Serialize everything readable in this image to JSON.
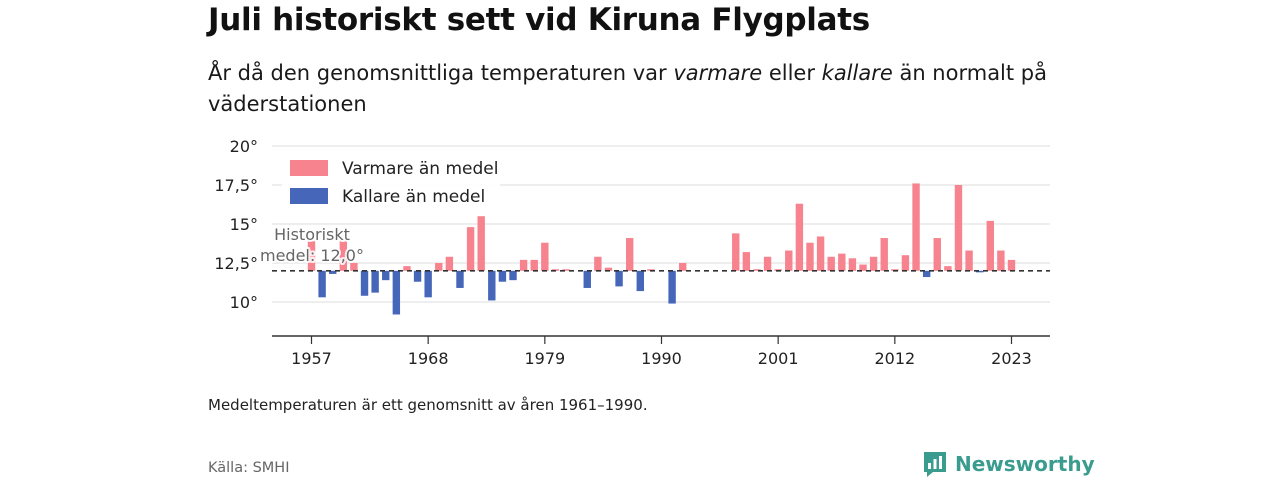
{
  "header": {
    "title": "Juli historiskt sett vid Kiruna Flygplats",
    "subtitle_pre": "År då den genomsnittliga temperaturen var ",
    "subtitle_warm": "varmare",
    "subtitle_mid": " eller ",
    "subtitle_cold": "kallare",
    "subtitle_post": " än normalt på väderstationen"
  },
  "footer": {
    "note": "Medeltemperaturen är ett genomsnitt av åren 1961–1990.",
    "source": "Källa: SMHI",
    "brand": "Newsworthy"
  },
  "colors": {
    "warm": "#f7838f",
    "cold": "#4566b9",
    "axis": "#333333",
    "grid": "#dddddd",
    "mean_line": "#333333"
  },
  "chart_data": {
    "type": "bar",
    "title": "Juli historiskt sett vid Kiruna Flygplats",
    "baseline": 12.0,
    "baseline_label_line1": "Historiskt",
    "baseline_label_line2": "medel: 12,0°",
    "ylim": [
      8,
      20
    ],
    "yticks": [
      10,
      12.5,
      15,
      17.5,
      20
    ],
    "ytick_labels": [
      "10°",
      "12,5°",
      "15°",
      "17,5°",
      "20°"
    ],
    "xlim": [
      1953,
      2027
    ],
    "xticks": [
      1957,
      1968,
      1979,
      1990,
      2001,
      2012,
      2023
    ],
    "xtick_labels": [
      "1957",
      "1968",
      "1979",
      "1990",
      "2001",
      "2012",
      "2023"
    ],
    "legend": [
      {
        "name": "Varmare än medel",
        "key": "warm"
      },
      {
        "name": "Kallare än medel",
        "key": "cold"
      }
    ],
    "legend_position": "top-left",
    "years": [
      1957,
      1958,
      1959,
      1960,
      1961,
      1962,
      1963,
      1964,
      1965,
      1966,
      1967,
      1968,
      1969,
      1970,
      1971,
      1972,
      1973,
      1974,
      1975,
      1976,
      1977,
      1978,
      1979,
      1980,
      1981,
      1982,
      1983,
      1984,
      1985,
      1986,
      1987,
      1988,
      1989,
      1990,
      1991,
      1992,
      1993,
      1994,
      1995,
      1996,
      1997,
      1998,
      1999,
      2000,
      2001,
      2002,
      2003,
      2004,
      2005,
      2006,
      2007,
      2008,
      2009,
      2010,
      2011,
      2012,
      2013,
      2014,
      2015,
      2016,
      2017,
      2018,
      2019,
      2020,
      2021,
      2022,
      2023,
      2024
    ],
    "values": [
      13.9,
      10.3,
      11.8,
      13.9,
      12.5,
      10.4,
      10.6,
      11.4,
      9.2,
      12.3,
      11.3,
      10.3,
      12.5,
      12.9,
      10.9,
      14.8,
      15.5,
      10.1,
      11.3,
      11.4,
      12.7,
      12.7,
      13.8,
      12.1,
      12.1,
      12.0,
      10.9,
      12.9,
      12.2,
      11.0,
      14.1,
      10.7,
      12.1,
      12.0,
      9.9,
      12.5,
      12.0,
      12.0,
      12.0,
      12.0,
      14.4,
      13.2,
      12.1,
      12.9,
      12.1,
      13.3,
      16.3,
      13.8,
      14.2,
      12.9,
      13.1,
      12.8,
      12.4,
      12.9,
      14.1,
      12.1,
      13.0,
      17.6,
      11.6,
      14.1,
      12.3,
      17.5,
      13.3,
      11.9,
      15.2,
      13.3,
      12.7,
      12.0
    ]
  }
}
